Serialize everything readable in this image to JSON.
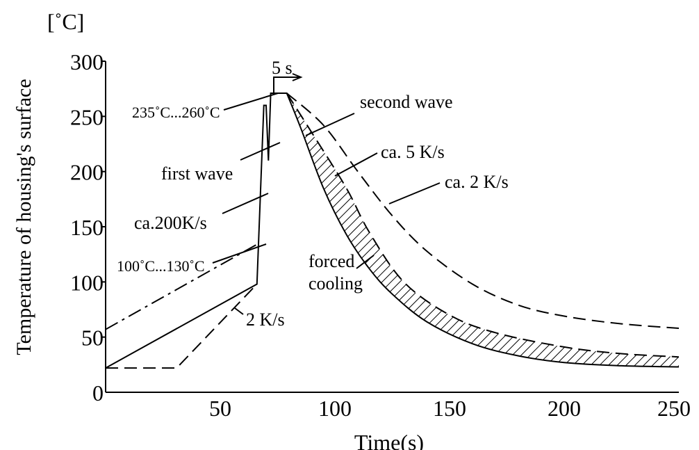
{
  "chart_data": {
    "type": "line",
    "title": "",
    "xlabel": "Time(s)",
    "ylabel": "Temperature of housing's surface",
    "yunit": "[˚C]",
    "xlim": [
      0,
      250
    ],
    "ylim": [
      0,
      300
    ],
    "x_ticks": [
      "50",
      "100",
      "150",
      "200",
      "250"
    ],
    "x_tick_values": [
      50,
      100,
      150,
      200,
      250
    ],
    "y_ticks": [
      "0",
      "50",
      "100",
      "150",
      "200",
      "250",
      "300"
    ],
    "y_tick_values": [
      0,
      50,
      100,
      150,
      200,
      250,
      300
    ],
    "grid": false,
    "legend": "none",
    "series": [
      {
        "style": "solid",
        "points": [
          [
            0,
            22
          ],
          [
            66,
            98
          ],
          [
            69,
            260
          ],
          [
            70,
            260
          ],
          [
            71,
            210
          ],
          [
            72,
            271
          ],
          [
            79,
            271
          ],
          [
            85,
            240
          ],
          [
            95,
            185
          ],
          [
            105,
            143
          ],
          [
            115,
            112
          ],
          [
            125,
            89
          ],
          [
            140,
            64
          ],
          [
            160,
            44
          ],
          [
            180,
            33
          ],
          [
            200,
            27
          ],
          [
            225,
            24
          ],
          [
            250,
            23
          ]
        ]
      },
      {
        "style": "dash",
        "points": [
          [
            0,
            22
          ],
          [
            31,
            22
          ],
          [
            66,
            98
          ]
        ]
      },
      {
        "style": "dash-dot",
        "points": [
          [
            0,
            57
          ],
          [
            66,
            134
          ]
        ]
      },
      {
        "style": "dash",
        "points": [
          [
            79,
            271
          ],
          [
            95,
            242
          ],
          [
            110,
            200
          ],
          [
            125,
            160
          ],
          [
            140,
            128
          ],
          [
            160,
            98
          ],
          [
            180,
            79
          ],
          [
            200,
            69
          ],
          [
            225,
            62
          ],
          [
            250,
            58
          ]
        ]
      },
      {
        "style": "dash",
        "points": [
          [
            79,
            271
          ],
          [
            90,
            235
          ],
          [
            105,
            185
          ],
          [
            115,
            145
          ],
          [
            130,
            100
          ],
          [
            150,
            70
          ],
          [
            170,
            54
          ],
          [
            200,
            41
          ],
          [
            225,
            35
          ],
          [
            250,
            32
          ]
        ]
      }
    ],
    "annotations": [
      {
        "text": "5 s"
      },
      {
        "text": "235˚C...260˚C"
      },
      {
        "text": "first wave"
      },
      {
        "text": "ca.200K/s"
      },
      {
        "text": "100˚C...130˚C"
      },
      {
        "text": "2 K/s"
      },
      {
        "text": "second wave"
      },
      {
        "text": "ca. 5 K/s"
      },
      {
        "text": "ca. 2 K/s"
      },
      {
        "text": "forced"
      },
      {
        "text": "cooling"
      }
    ]
  }
}
